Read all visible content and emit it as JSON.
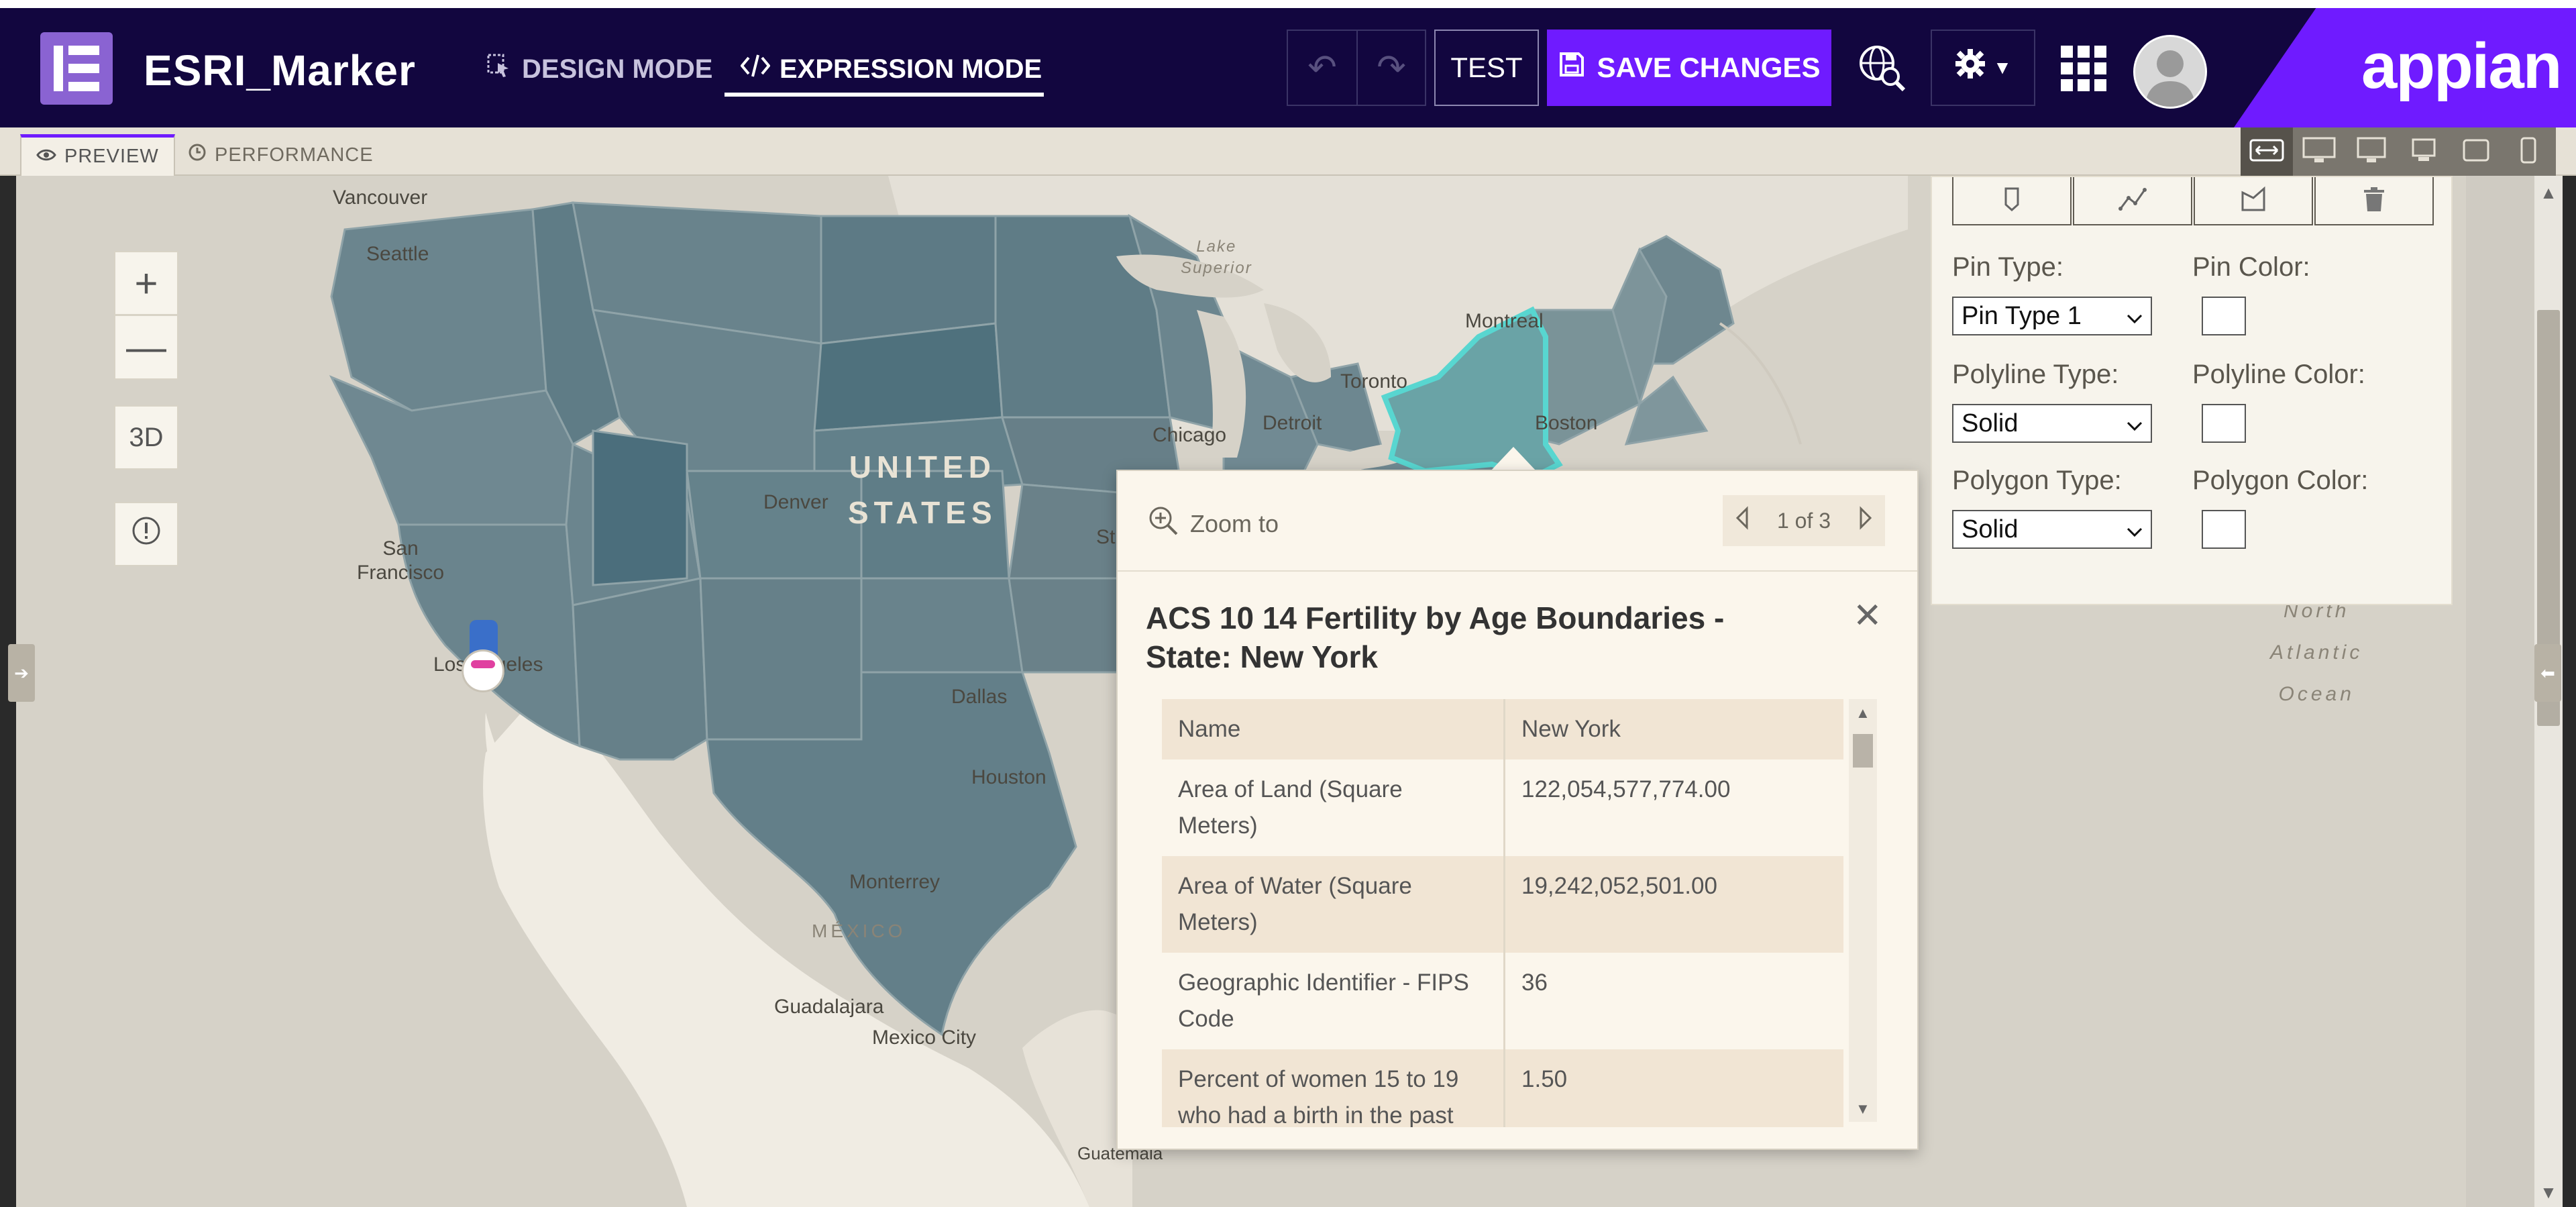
{
  "header": {
    "app_title": "ESRI_Marker",
    "design_mode_label": "DESIGN MODE",
    "expression_mode_label": "EXPRESSION MODE",
    "test_label": "TEST",
    "save_label": "SAVE CHANGES",
    "logo_text": "appian",
    "colors": {
      "header_bg": "#12063f",
      "accent": "#6f1bff",
      "brand_box": "#8a63d2"
    }
  },
  "tabs": {
    "preview_label": "PREVIEW",
    "performance_label": "PERFORMANCE"
  },
  "map": {
    "labels": {
      "vancouver": "Vancouver",
      "seattle": "Seattle",
      "san_francisco": "San\nFrancisco",
      "los_angeles": "Los Angeles",
      "denver": "Denver",
      "united_states": "UNITED\nSTATES",
      "dallas": "Dallas",
      "houston": "Houston",
      "monterrey": "Monterrey",
      "mexico": "MÉXICO",
      "guadalajara": "Guadalajara",
      "mexico_city": "Mexico City",
      "guatemala": "Guatemala",
      "chicago": "Chicago",
      "detroit": "Detroit",
      "toronto": "Toronto",
      "montreal": "Montreal",
      "boston": "Boston",
      "lake_superior": "Lake\nSuperior",
      "north_atlantic": "North\nAtlantic\nOcean",
      "st_partial": "St"
    },
    "controls": {
      "zoom_in": "+",
      "zoom_out": "—",
      "three_d": "3D"
    }
  },
  "popup": {
    "zoom_to": "Zoom to",
    "pager": "1 of 3",
    "title": "ACS 10 14 Fertility by Age Boundaries - State: New York",
    "rows": [
      {
        "key": "Name",
        "value": "New York"
      },
      {
        "key": "Area of Land (Square Meters)",
        "value": "122,054,577,774.00"
      },
      {
        "key": "Area of Water (Square Meters)",
        "value": "19,242,052,501.00"
      },
      {
        "key": "Geographic Identifier - FIPS Code",
        "value": "36"
      },
      {
        "key": "Percent of women 15 to 19 who had a birth in the past",
        "value": "1.50"
      }
    ]
  },
  "panel": {
    "pin_type_label": "Pin Type:",
    "pin_type_value": "Pin Type 1",
    "pin_color_label": "Pin Color:",
    "polyline_type_label": "Polyline Type:",
    "polyline_type_value": "Solid",
    "polyline_color_label": "Polyline Color:",
    "polygon_type_label": "Polygon Type:",
    "polygon_type_value": "Solid",
    "polygon_color_label": "Polygon Color:"
  }
}
